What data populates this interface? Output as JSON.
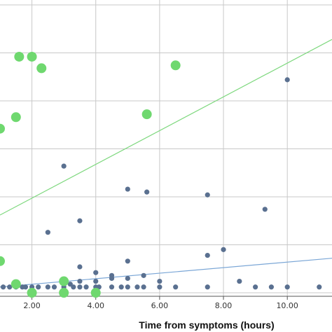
{
  "chart_data": {
    "type": "scatter",
    "xlabel": "Time from symptoms (hours)",
    "ylabel": "",
    "xlim": [
      1.0,
      11.4
    ],
    "ylim": [
      0,
      100
    ],
    "x_ticks": [
      2.0,
      4.0,
      6.0,
      8.0,
      10.0
    ],
    "x_tick_labels": [
      "2.00",
      "4.00",
      "6.00",
      "8.00",
      "10.00"
    ],
    "y_gridlines": [
      0,
      16.67,
      33.33,
      50,
      66.67,
      83.33,
      100
    ],
    "grid": true,
    "legend": "none",
    "series": [
      {
        "color": "#5a7090",
        "marker_size": "small",
        "points": [
          [
            1.1,
            2
          ],
          [
            1.3,
            2
          ],
          [
            1.5,
            2
          ],
          [
            1.7,
            2
          ],
          [
            1.8,
            2
          ],
          [
            2.0,
            2
          ],
          [
            2.2,
            2
          ],
          [
            2.5,
            2
          ],
          [
            2.7,
            2
          ],
          [
            3.0,
            2
          ],
          [
            3.3,
            2
          ],
          [
            3.5,
            2
          ],
          [
            3.7,
            2
          ],
          [
            4.0,
            2
          ],
          [
            4.1,
            2
          ],
          [
            4.5,
            2
          ],
          [
            4.8,
            2
          ],
          [
            5.0,
            2
          ],
          [
            5.3,
            2
          ],
          [
            5.5,
            2
          ],
          [
            6.0,
            2
          ],
          [
            6.5,
            2
          ],
          [
            7.5,
            2
          ],
          [
            9.0,
            2
          ],
          [
            9.5,
            2
          ],
          [
            10.0,
            2
          ],
          [
            11.0,
            2
          ],
          [
            3.2,
            3
          ],
          [
            3.5,
            4
          ],
          [
            4.0,
            4
          ],
          [
            4.5,
            5
          ],
          [
            5.0,
            5
          ],
          [
            6.0,
            4
          ],
          [
            8.5,
            4
          ],
          [
            4.0,
            7
          ],
          [
            4.5,
            6
          ],
          [
            5.5,
            6
          ],
          [
            3.5,
            9
          ],
          [
            5.0,
            11
          ],
          [
            7.5,
            13
          ],
          [
            8.0,
            15
          ],
          [
            2.5,
            21
          ],
          [
            3.5,
            25
          ],
          [
            5.0,
            36
          ],
          [
            5.6,
            35
          ],
          [
            7.5,
            34
          ],
          [
            9.3,
            29
          ],
          [
            3.0,
            44
          ],
          [
            10.0,
            74
          ]
        ]
      },
      {
        "color": "#6fd86f",
        "marker_size": "large",
        "points": [
          [
            1.6,
            82
          ],
          [
            2.0,
            82
          ],
          [
            2.3,
            78
          ],
          [
            6.5,
            79
          ],
          [
            1.5,
            61
          ],
          [
            5.6,
            62
          ],
          [
            1.0,
            57
          ],
          [
            1.0,
            11
          ],
          [
            1.5,
            3
          ],
          [
            3.0,
            4
          ],
          [
            2.0,
            0
          ],
          [
            3.0,
            0
          ],
          [
            4.0,
            0
          ]
        ]
      }
    ],
    "fit_lines": [
      {
        "color": "#7ed87e",
        "from": [
          1.0,
          27
        ],
        "to": [
          11.4,
          88
        ]
      },
      {
        "color": "#7aa6d6",
        "from": [
          1.0,
          2
        ],
        "to": [
          11.4,
          12
        ]
      }
    ]
  }
}
